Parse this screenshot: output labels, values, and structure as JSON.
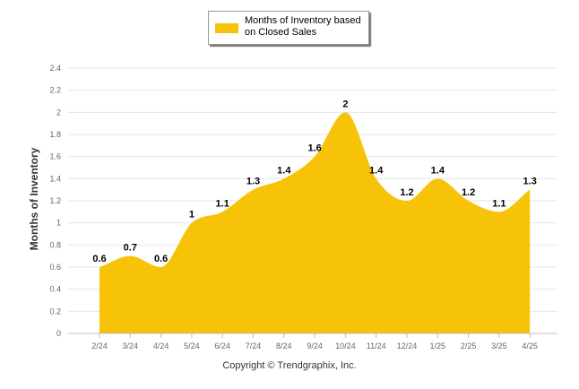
{
  "colors": {
    "fill": "#F7C308",
    "grid": "#e6e6e6",
    "axis_text": "#666666",
    "axis_title": "#333333",
    "data_label": "#000000"
  },
  "copyright": "Copyright © Trendgraphix, Inc.",
  "chart_data": {
    "type": "area",
    "smooth": true,
    "ylabel": "Months of Inventory",
    "xlabel": "",
    "ylim": [
      0,
      2.4
    ],
    "yticks": [
      "0",
      "0.2",
      "0.4",
      "0.6",
      "0.8",
      "1",
      "1.2",
      "1.4",
      "1.6",
      "1.8",
      "2",
      "2.2",
      "2.4"
    ],
    "grid": true,
    "legend_position": "top-center",
    "categories": [
      "2/24",
      "3/24",
      "4/24",
      "5/24",
      "6/24",
      "7/24",
      "8/24",
      "9/24",
      "10/24",
      "11/24",
      "12/24",
      "1/25",
      "2/25",
      "3/25",
      "4/25"
    ],
    "series": [
      {
        "name": "Months of Inventory based on Closed Sales",
        "values": [
          0.6,
          0.7,
          0.6,
          1,
          1.1,
          1.3,
          1.4,
          1.6,
          2,
          1.4,
          1.2,
          1.4,
          1.2,
          1.1,
          1.3
        ],
        "labels": [
          "0.6",
          "0.7",
          "0.6",
          "1",
          "1.1",
          "1.3",
          "1.4",
          "1.6",
          "2",
          "1.4",
          "1.2",
          "1.4",
          "1.2",
          "1.1",
          "1.3"
        ]
      }
    ]
  }
}
